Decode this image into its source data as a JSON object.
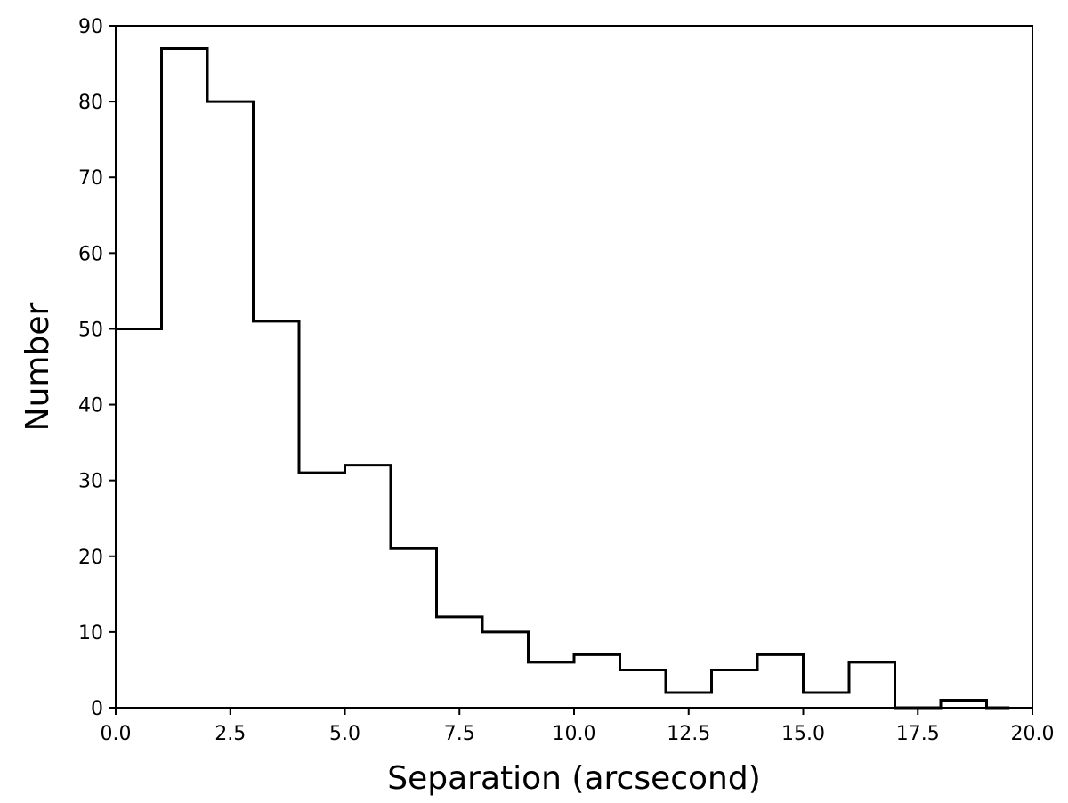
{
  "chart_data": {
    "type": "histogram",
    "title": "",
    "xlabel": "Separation (arcsecond)",
    "ylabel": "Number",
    "xlim": [
      0.0,
      20.0
    ],
    "ylim": [
      0,
      90
    ],
    "xticks": [
      0.0,
      2.5,
      5.0,
      7.5,
      10.0,
      12.5,
      15.0,
      17.5,
      20.0
    ],
    "xtick_labels": [
      "0.0",
      "2.5",
      "5.0",
      "7.5",
      "10.0",
      "12.5",
      "15.0",
      "17.5",
      "20.0"
    ],
    "yticks": [
      0,
      10,
      20,
      30,
      40,
      50,
      60,
      70,
      80,
      90
    ],
    "ytick_labels": [
      "0",
      "10",
      "20",
      "30",
      "40",
      "50",
      "60",
      "70",
      "80",
      "90"
    ],
    "grid": false,
    "histtype": "step",
    "line_color": "#000000",
    "bin_edges": [
      0,
      1,
      2,
      3,
      4,
      5,
      6,
      7,
      8,
      9,
      10,
      11,
      12,
      13,
      14,
      15,
      16,
      17,
      18,
      19,
      19.5
    ],
    "counts": [
      50,
      87,
      80,
      51,
      31,
      32,
      21,
      12,
      10,
      6,
      7,
      5,
      2,
      5,
      7,
      2,
      6,
      0,
      1,
      0
    ]
  }
}
